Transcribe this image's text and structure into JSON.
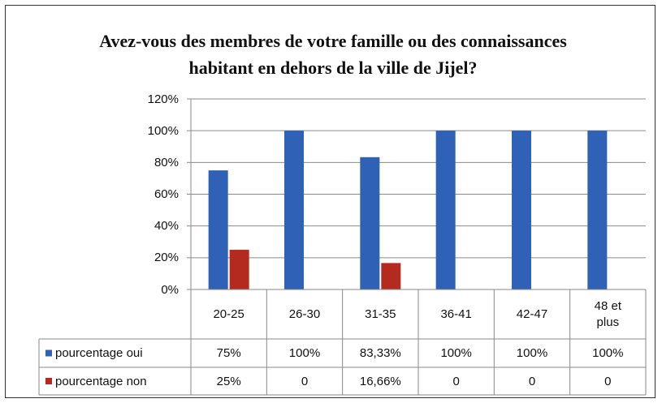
{
  "chart_data": {
    "type": "bar",
    "title": "Avez-vous des membres de votre famille ou des connaissances habitant en dehors de la ville de Jijel?",
    "categories": [
      "20-25",
      "26-30",
      "31-35",
      "36-41",
      "42-47",
      "48 et plus"
    ],
    "series": [
      {
        "name": "pourcentage oui",
        "color": "#2f62b6",
        "values": [
          75,
          100,
          83.33,
          100,
          100,
          100
        ],
        "value_labels": [
          "75%",
          "100%",
          "83,33%",
          "100%",
          "100%",
          "100%"
        ]
      },
      {
        "name": "pourcentage non",
        "color": "#b52a1e",
        "values": [
          25,
          0,
          16.66,
          0,
          0,
          0
        ],
        "value_labels": [
          "25%",
          "0",
          "16,66%",
          "0",
          "0",
          "0"
        ]
      }
    ],
    "ylim": [
      0,
      120
    ],
    "yticks": [
      {
        "value": 0,
        "label": "0%"
      },
      {
        "value": 20,
        "label": "20%"
      },
      {
        "value": 40,
        "label": "40%"
      },
      {
        "value": 60,
        "label": "60%"
      },
      {
        "value": 80,
        "label": "80%"
      },
      {
        "value": 100,
        "label": "100%"
      },
      {
        "value": 120,
        "label": "120%"
      }
    ],
    "grid": true,
    "data_table": true
  }
}
